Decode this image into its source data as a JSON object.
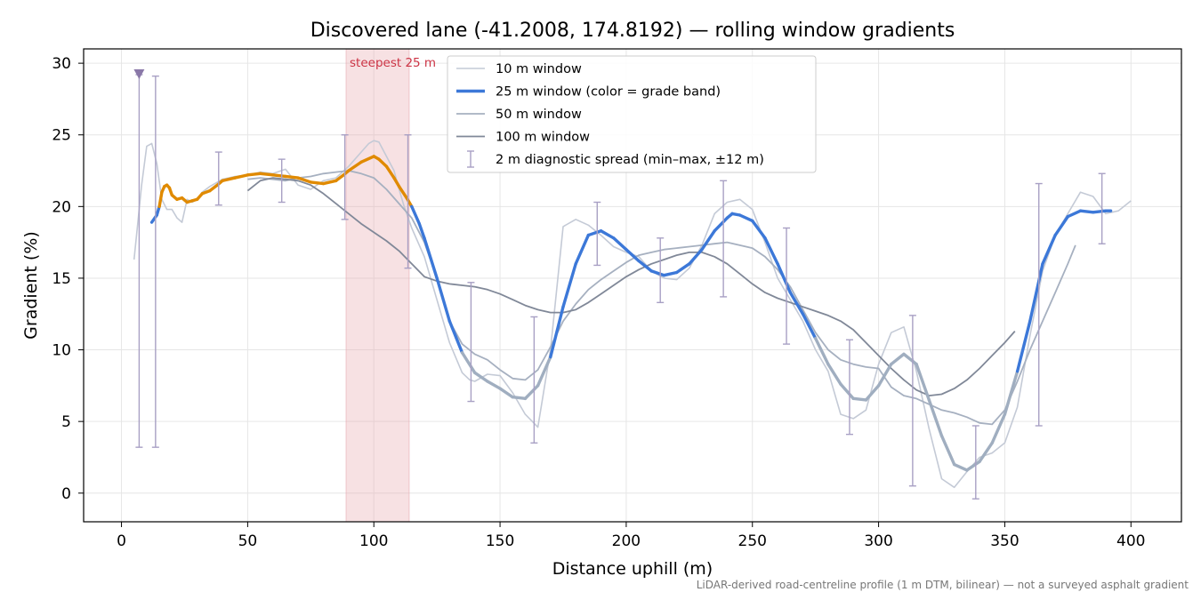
{
  "chart_data": {
    "type": "line",
    "title": "Discovered lane (-41.2008, 174.8192) — rolling window gradients",
    "xlabel": "Distance uphill (m)",
    "ylabel": "Gradient (%)",
    "xlim": [
      -15,
      420
    ],
    "ylim": [
      -2,
      31
    ],
    "xticks": [
      0,
      50,
      100,
      150,
      200,
      250,
      300,
      350,
      400
    ],
    "yticks": [
      0,
      5,
      10,
      15,
      20,
      25,
      30
    ],
    "grid": true,
    "legend_placement": "upper center",
    "legend": [
      {
        "label": "10 m window",
        "style": "thin-light"
      },
      {
        "label": "25 m window (color = grade band)",
        "style": "thick-blue"
      },
      {
        "label": "50 m window",
        "style": "medium"
      },
      {
        "label": "100 m window",
        "style": "dark"
      },
      {
        "label": "2 m diagnostic spread (min–max, ±12 m)",
        "style": "errorbar"
      }
    ],
    "highlight": {
      "label": "steepest 25 m",
      "x0": 89,
      "x1": 114,
      "color": "#e8a8b0"
    },
    "marker": {
      "x": 7,
      "y": 29.2,
      "shape": "triangle-down",
      "color": "#8a78a8"
    },
    "footnote": "LiDAR-derived road-centreline profile (1 m DTM, bilinear) — not a surveyed asphalt gradient",
    "colors": {
      "w10": "#c4cad6",
      "w25_gentle": "#a0aec0",
      "w25_mid": "#3c78d8",
      "w25_steep": "#e08a00",
      "w50": "#a6b0c0",
      "w100": "#808898",
      "errorbar": "#a8a0c4",
      "highlight": "#e8a8b0",
      "highlight_label": "#cc3344"
    },
    "series": [
      {
        "name": "10 m window",
        "key": "w10",
        "x": [
          5,
          8,
          10,
          12,
          14,
          16,
          18,
          20,
          22,
          24,
          26,
          28,
          30,
          32,
          35,
          40,
          45,
          50,
          55,
          60,
          65,
          70,
          75,
          80,
          85,
          90,
          95,
          98,
          100,
          102,
          105,
          108,
          110,
          112,
          115,
          120,
          125,
          130,
          135,
          138,
          140,
          145,
          150,
          155,
          160,
          165,
          170,
          175,
          180,
          185,
          190,
          195,
          200,
          205,
          210,
          215,
          220,
          225,
          230,
          235,
          240,
          245,
          250,
          255,
          260,
          265,
          270,
          275,
          280,
          285,
          290,
          295,
          300,
          305,
          310,
          315,
          320,
          325,
          330,
          335,
          340,
          345,
          350,
          355,
          360,
          365,
          370,
          375,
          380,
          385,
          390,
          395,
          400
        ],
        "y": [
          16.3,
          21.5,
          24.2,
          24.4,
          23,
          20.5,
          19.8,
          19.8,
          19.2,
          18.9,
          20.5,
          20.3,
          20.5,
          21.0,
          21.4,
          21.9,
          22.1,
          22.2,
          22.4,
          22.3,
          22.6,
          21.5,
          21.2,
          21.8,
          22.0,
          22.8,
          23.8,
          24.4,
          24.6,
          24.5,
          23.5,
          22.5,
          21.2,
          20.0,
          18.5,
          16.5,
          13.5,
          10.5,
          8.4,
          7.9,
          7.8,
          8.3,
          8.2,
          7.0,
          5.5,
          4.6,
          10.0,
          18.6,
          19.1,
          18.7,
          18.0,
          17.2,
          16.8,
          16.5,
          15.5,
          15.0,
          14.9,
          15.7,
          17.3,
          19.5,
          20.3,
          20.5,
          19.8,
          17.5,
          15.0,
          13.5,
          12.0,
          10.0,
          8.5,
          5.5,
          5.2,
          5.8,
          9.0,
          11.2,
          11.6,
          8.5,
          4.5,
          1.0,
          0.4,
          1.5,
          2.5,
          2.8,
          3.5,
          6.0,
          11.0,
          15.5,
          18.0,
          19.5,
          21.0,
          20.7,
          19.5,
          19.7,
          20.4
        ]
      },
      {
        "name": "25 m window (color = grade band)",
        "key": "w25",
        "x": [
          12,
          14,
          15,
          16,
          17,
          18,
          19,
          20,
          22,
          24,
          26,
          28,
          30,
          32,
          35,
          38,
          40,
          45,
          50,
          55,
          60,
          65,
          70,
          75,
          80,
          85,
          88,
          90,
          95,
          100,
          102,
          105,
          108,
          110,
          113,
          115,
          118,
          120,
          125,
          130,
          135,
          140,
          145,
          150,
          155,
          160,
          165,
          170,
          175,
          180,
          185,
          190,
          195,
          200,
          205,
          210,
          215,
          220,
          225,
          230,
          235,
          240,
          242,
          245,
          250,
          255,
          260,
          265,
          270,
          275,
          280,
          285,
          290,
          295,
          300,
          305,
          310,
          315,
          320,
          325,
          330,
          335,
          340,
          345,
          350,
          355,
          360,
          365,
          370,
          375,
          380,
          385,
          390,
          392
        ],
        "y": [
          18.9,
          19.4,
          20.0,
          21.0,
          21.4,
          21.5,
          21.3,
          20.8,
          20.5,
          20.6,
          20.3,
          20.4,
          20.5,
          20.9,
          21.1,
          21.5,
          21.8,
          22.0,
          22.2,
          22.3,
          22.2,
          22.1,
          22.0,
          21.7,
          21.6,
          21.8,
          22.2,
          22.5,
          23.1,
          23.5,
          23.3,
          22.8,
          22.0,
          21.4,
          20.6,
          20.0,
          18.8,
          17.8,
          15.0,
          12.0,
          9.8,
          8.4,
          7.8,
          7.3,
          6.7,
          6.6,
          7.5,
          9.5,
          13.0,
          16.0,
          18.0,
          18.3,
          17.8,
          17.0,
          16.2,
          15.5,
          15.2,
          15.4,
          16.0,
          17.0,
          18.3,
          19.2,
          19.5,
          19.4,
          19.0,
          17.8,
          16.0,
          14.0,
          12.5,
          10.8,
          9.0,
          7.6,
          6.6,
          6.5,
          7.5,
          9.0,
          9.7,
          9.0,
          6.5,
          4.0,
          2.0,
          1.6,
          2.2,
          3.5,
          5.5,
          8.5,
          12.0,
          16.0,
          18.0,
          19.3,
          19.7,
          19.6,
          19.7,
          19.7
        ]
      },
      {
        "name": "50 m window",
        "key": "w50",
        "x": [
          50,
          55,
          60,
          65,
          70,
          75,
          80,
          85,
          90,
          95,
          100,
          105,
          110,
          115,
          120,
          125,
          130,
          135,
          140,
          145,
          150,
          155,
          160,
          165,
          170,
          175,
          180,
          185,
          190,
          195,
          200,
          205,
          210,
          215,
          220,
          225,
          230,
          235,
          240,
          245,
          250,
          255,
          260,
          265,
          270,
          275,
          280,
          285,
          290,
          295,
          300,
          305,
          310,
          315,
          320,
          325,
          330,
          335,
          340,
          345,
          350,
          355,
          360,
          365,
          370,
          375,
          378
        ],
        "y": [
          21.9,
          22.0,
          21.9,
          21.8,
          22.0,
          22.1,
          22.3,
          22.4,
          22.5,
          22.3,
          22.0,
          21.2,
          20.2,
          19.2,
          17.5,
          15.0,
          12.0,
          10.4,
          9.7,
          9.3,
          8.6,
          8.0,
          7.9,
          8.6,
          10.2,
          12.0,
          13.2,
          14.2,
          14.9,
          15.5,
          16.1,
          16.6,
          16.8,
          17.0,
          17.1,
          17.2,
          17.3,
          17.4,
          17.5,
          17.3,
          17.1,
          16.5,
          15.6,
          14.4,
          12.8,
          11.2,
          10.0,
          9.3,
          9.0,
          8.8,
          8.7,
          7.4,
          6.8,
          6.6,
          6.2,
          5.8,
          5.6,
          5.3,
          4.9,
          4.8,
          5.8,
          7.8,
          10.0,
          12.0,
          14.0,
          16.0,
          17.3
        ]
      },
      {
        "name": "100 m window",
        "key": "w100",
        "x": [
          50,
          55,
          60,
          65,
          70,
          75,
          80,
          85,
          90,
          95,
          100,
          105,
          110,
          115,
          120,
          125,
          130,
          135,
          140,
          145,
          150,
          155,
          160,
          165,
          170,
          175,
          180,
          185,
          190,
          195,
          200,
          205,
          210,
          215,
          220,
          225,
          230,
          235,
          240,
          245,
          250,
          255,
          260,
          265,
          270,
          275,
          280,
          285,
          290,
          295,
          300,
          305,
          310,
          315,
          320,
          325,
          330,
          335,
          340,
          345,
          350,
          354
        ],
        "y": [
          21.1,
          21.8,
          22.0,
          21.9,
          21.8,
          21.5,
          20.9,
          20.2,
          19.5,
          18.8,
          18.2,
          17.6,
          16.9,
          16.0,
          15.1,
          14.8,
          14.6,
          14.5,
          14.4,
          14.2,
          13.9,
          13.5,
          13.1,
          12.8,
          12.6,
          12.6,
          12.8,
          13.3,
          13.9,
          14.5,
          15.1,
          15.6,
          16.0,
          16.3,
          16.6,
          16.8,
          16.8,
          16.5,
          16.0,
          15.3,
          14.6,
          14.0,
          13.6,
          13.3,
          13.0,
          12.7,
          12.4,
          12.0,
          11.4,
          10.5,
          9.6,
          8.7,
          7.9,
          7.2,
          6.8,
          6.9,
          7.3,
          7.9,
          8.7,
          9.6,
          10.5,
          11.3
        ]
      }
    ],
    "errorbars": [
      {
        "x": 7,
        "ymin": 3.2,
        "ymax": 29.2
      },
      {
        "x": 13.5,
        "ymin": 3.2,
        "ymax": 29.1
      },
      {
        "x": 38.5,
        "ymin": 20.1,
        "ymax": 23.8
      },
      {
        "x": 63.5,
        "ymin": 20.3,
        "ymax": 23.3
      },
      {
        "x": 88.5,
        "ymin": 19.1,
        "ymax": 25.0
      },
      {
        "x": 113.5,
        "ymin": 15.7,
        "ymax": 25.0
      },
      {
        "x": 138.5,
        "ymin": 6.4,
        "ymax": 14.7
      },
      {
        "x": 163.5,
        "ymin": 3.5,
        "ymax": 12.3
      },
      {
        "x": 188.5,
        "ymin": 15.9,
        "ymax": 20.3
      },
      {
        "x": 213.5,
        "ymin": 13.3,
        "ymax": 17.8
      },
      {
        "x": 238.5,
        "ymin": 13.7,
        "ymax": 21.8
      },
      {
        "x": 263.5,
        "ymin": 10.4,
        "ymax": 18.5
      },
      {
        "x": 288.5,
        "ymin": 4.1,
        "ymax": 10.7
      },
      {
        "x": 313.5,
        "ymin": 0.5,
        "ymax": 12.4
      },
      {
        "x": 338.5,
        "ymin": -0.4,
        "ymax": 4.7
      },
      {
        "x": 363.5,
        "ymin": 4.7,
        "ymax": 21.6
      },
      {
        "x": 388.5,
        "ymin": 17.4,
        "ymax": 22.3
      }
    ]
  }
}
